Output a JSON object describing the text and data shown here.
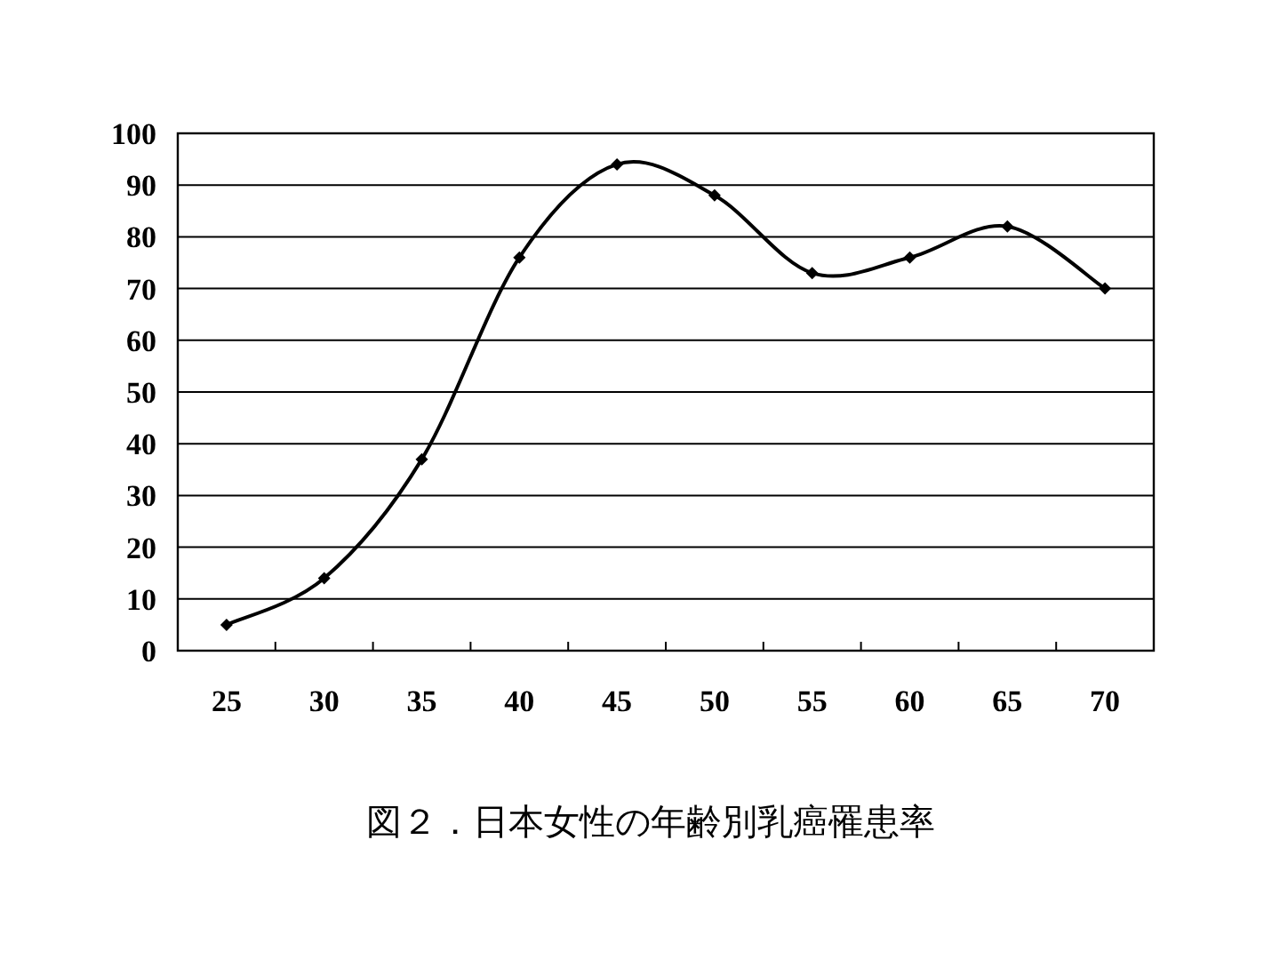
{
  "chart_data": {
    "type": "line",
    "title": "図２．日本女性の年齢別乳癌罹患率",
    "categories": [
      "25",
      "30",
      "35",
      "40",
      "45",
      "50",
      "55",
      "60",
      "65",
      "70"
    ],
    "values": [
      5,
      14,
      37,
      76,
      94,
      88,
      73,
      76,
      82,
      70
    ],
    "color": "#000000",
    "ylim": [
      0,
      100
    ],
    "yticks": [
      0,
      10,
      20,
      30,
      40,
      50,
      60,
      70,
      80,
      90,
      100
    ],
    "grid": "y",
    "marker": "diamond",
    "line_style": "solid"
  }
}
